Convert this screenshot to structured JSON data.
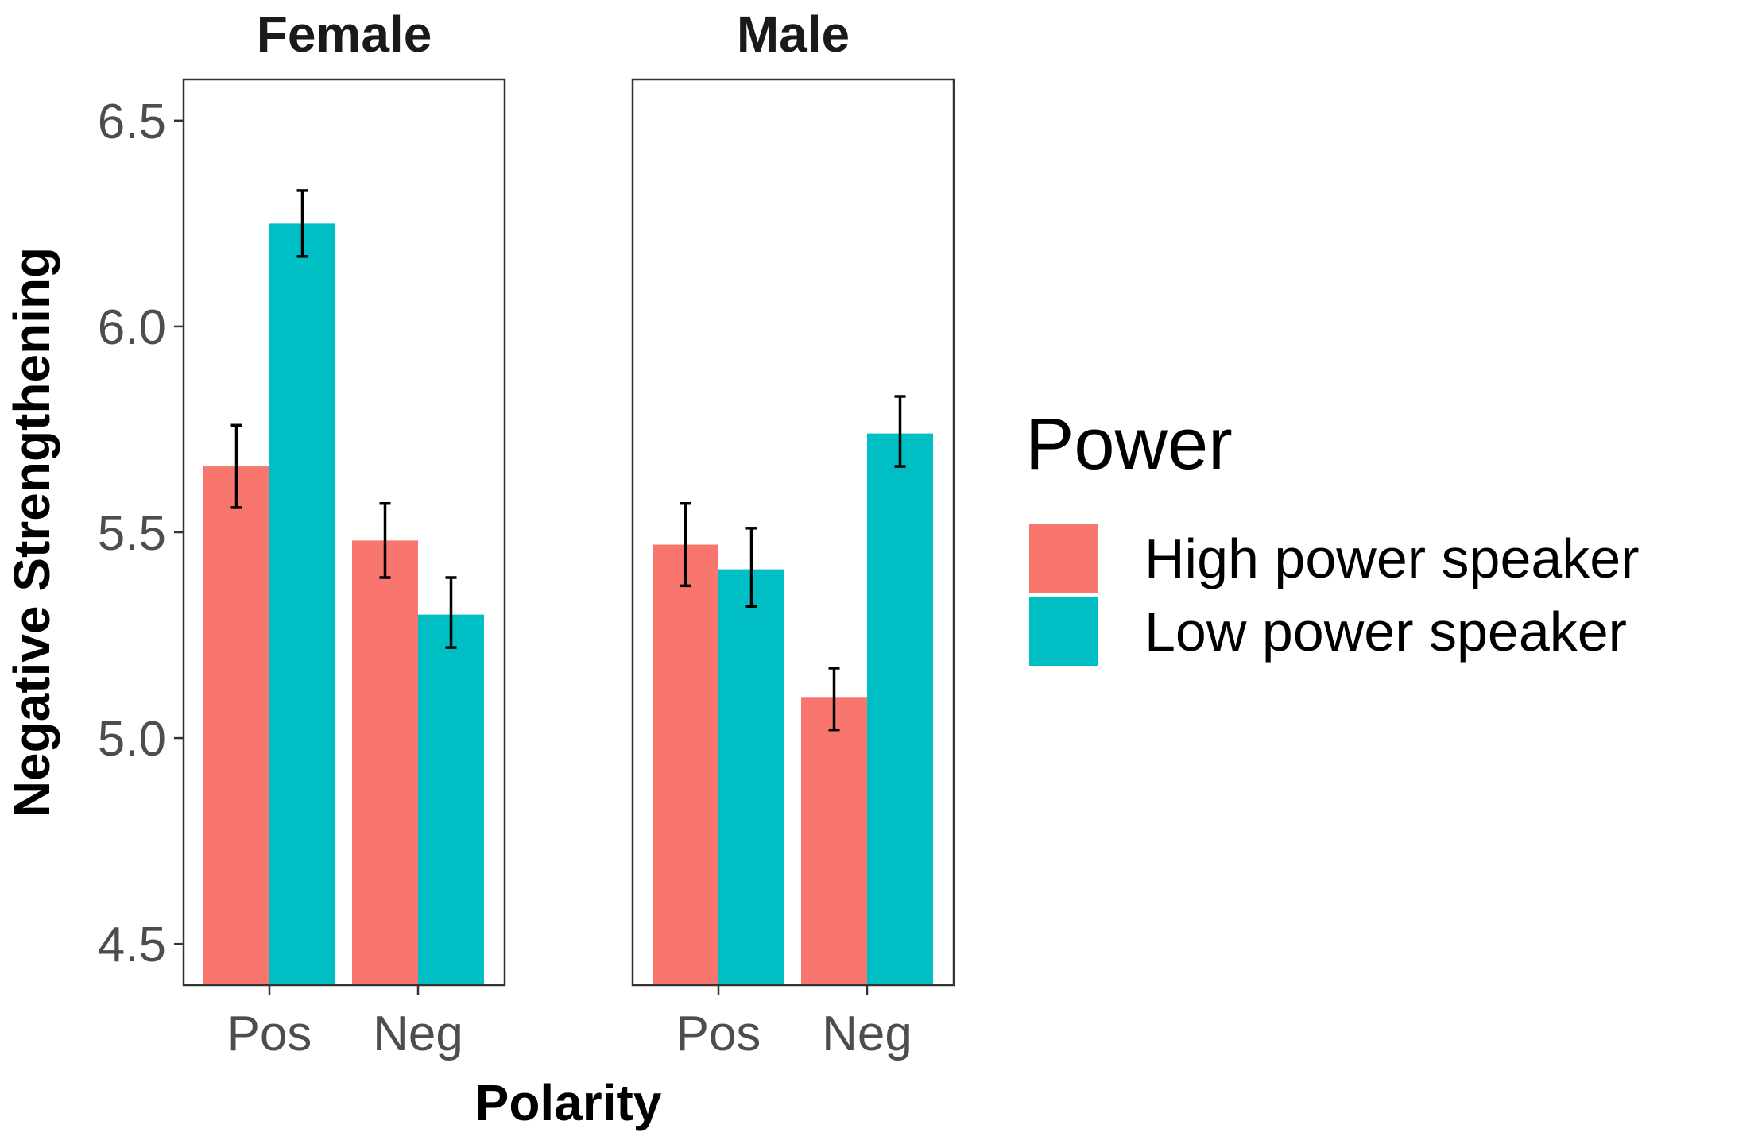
{
  "chart_data": {
    "type": "bar",
    "facets": [
      {
        "title": "Female",
        "categories": [
          "Pos",
          "Neg"
        ],
        "series": [
          {
            "name": "High power speaker",
            "values": [
              5.66,
              5.48
            ],
            "err_low": [
              5.56,
              5.39
            ],
            "err_high": [
              5.76,
              5.57
            ]
          },
          {
            "name": "Low power speaker",
            "values": [
              6.25,
              5.3
            ],
            "err_low": [
              6.17,
              5.22
            ],
            "err_high": [
              6.33,
              5.39
            ]
          }
        ]
      },
      {
        "title": "Male",
        "categories": [
          "Pos",
          "Neg"
        ],
        "series": [
          {
            "name": "High power speaker",
            "values": [
              5.47,
              5.1
            ],
            "err_low": [
              5.37,
              5.02
            ],
            "err_high": [
              5.57,
              5.17
            ]
          },
          {
            "name": "Low power speaker",
            "values": [
              5.41,
              5.74
            ],
            "err_low": [
              5.32,
              5.66
            ],
            "err_high": [
              5.51,
              5.83
            ]
          }
        ]
      }
    ],
    "xlabel": "Polarity",
    "ylabel": "Negative Strengthening",
    "ylim": [
      4.4,
      6.6
    ],
    "yticks": [
      4.5,
      5.0,
      5.5,
      6.0,
      6.5
    ],
    "ytick_labels": [
      "4.5",
      "5.0",
      "5.5",
      "6.0",
      "6.5"
    ],
    "legend": {
      "title": "Power",
      "position": "right",
      "entries": [
        "High power speaker",
        "Low power speaker"
      ]
    },
    "colors": [
      "#F8766D",
      "#00BFC4"
    ],
    "grid": false
  }
}
